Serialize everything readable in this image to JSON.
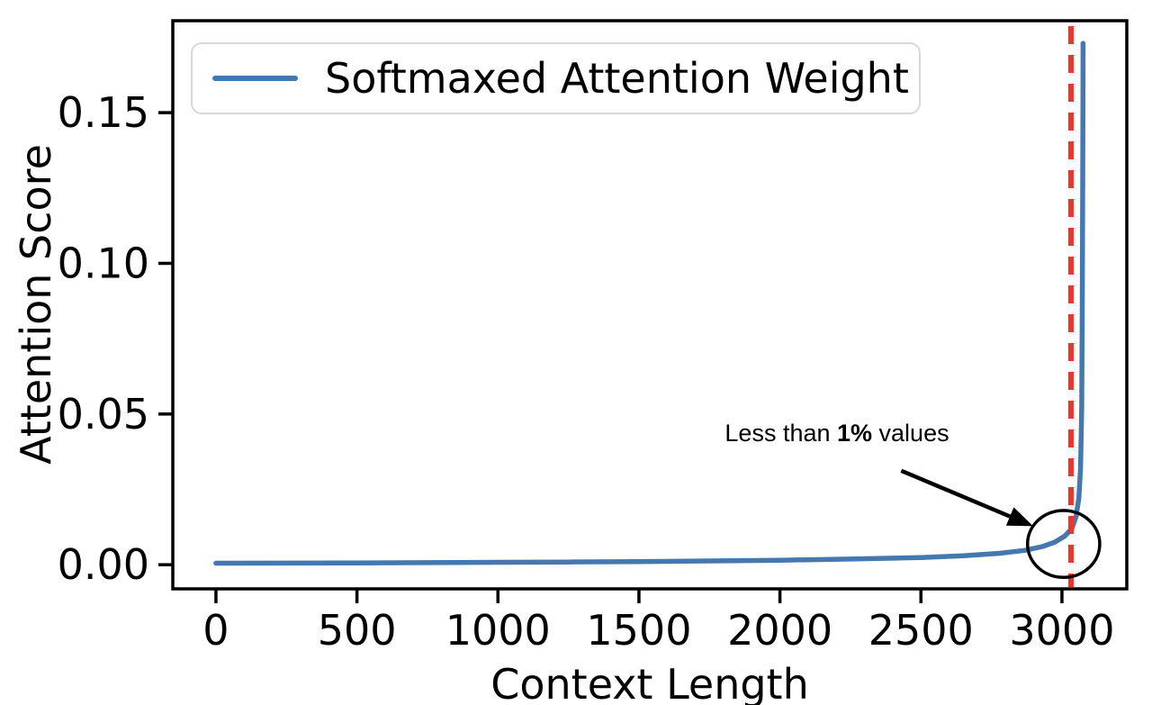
{
  "figure": {
    "background": "#ffffff",
    "frame_color": "#000000"
  },
  "chart_data": {
    "type": "line",
    "title": "",
    "xlabel": "Context Length",
    "ylabel": "Attention Score",
    "xlim": [
      -153,
      3230
    ],
    "ylim": [
      -0.008,
      0.1805
    ],
    "xticks": [
      0,
      500,
      1000,
      1500,
      2000,
      2500,
      3000
    ],
    "xtick_labels": [
      "0",
      "500",
      "1000",
      "1500",
      "2000",
      "2500",
      "3000"
    ],
    "yticks": [
      0,
      0.05,
      0.1,
      0.15
    ],
    "ytick_labels": [
      "0.00",
      "0.05",
      "0.10",
      "0.15"
    ],
    "grid": false,
    "legend": {
      "position": "upper-left",
      "entries": [
        {
          "label": "Softmaxed Attention Weight",
          "color": "#4678b0"
        }
      ]
    },
    "series": [
      {
        "name": "Softmaxed Attention Weight",
        "color": "#4678b0",
        "x": [
          0,
          250,
          500,
          750,
          1000,
          1250,
          1500,
          1750,
          2000,
          2250,
          2500,
          2650,
          2780,
          2870,
          2930,
          2975,
          3010,
          3035,
          3050,
          3060,
          3066,
          3070,
          3072,
          3073.5,
          3074.5,
          3075
        ],
        "y": [
          0.0005,
          0.00055,
          0.0006,
          0.0007,
          0.0008,
          0.0009,
          0.00105,
          0.00125,
          0.0015,
          0.0019,
          0.0024,
          0.003,
          0.0038,
          0.0048,
          0.006,
          0.0075,
          0.0095,
          0.012,
          0.016,
          0.022,
          0.032,
          0.052,
          0.085,
          0.125,
          0.155,
          0.173
        ]
      }
    ],
    "peak": {
      "x": 3075,
      "y": 0.173
    },
    "vline": {
      "x": 3032,
      "color": "#ed342b",
      "style": "dashed"
    },
    "annotation": {
      "text_regular_prefix": "Less than ",
      "text_bold": "1%",
      "text_regular_suffix": " values",
      "text_x": 2200,
      "text_y": 0.0435,
      "arrow": {
        "x1": 2430,
        "y1": 0.0312,
        "x2": 2898,
        "y2": 0.0128,
        "color": "#000000"
      },
      "circle": {
        "cx": 3006,
        "cy": 0.0069,
        "rx": 128,
        "ry": 0.0111,
        "color": "#000000"
      }
    }
  }
}
